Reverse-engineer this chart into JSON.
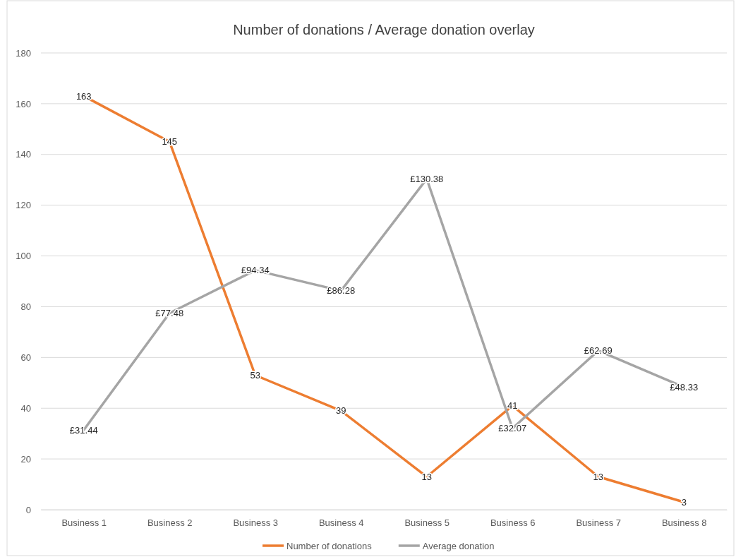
{
  "chart_data": {
    "type": "line",
    "title": "Number of donations / Average donation overlay",
    "categories": [
      "Business 1",
      "Business 2",
      "Business 3",
      "Business 4",
      "Business 5",
      "Business 6",
      "Business 7",
      "Business 8"
    ],
    "series": [
      {
        "name": "Number of donations",
        "color": "#ed7d31",
        "values": [
          163,
          145,
          53,
          39,
          13,
          41,
          13,
          3
        ],
        "value_labels": [
          "163",
          "145",
          "53",
          "39",
          "13",
          "41",
          "13",
          "3"
        ]
      },
      {
        "name": "Average donation",
        "color": "#a5a5a5",
        "values": [
          31.44,
          77.48,
          94.34,
          86.28,
          130.38,
          32.07,
          62.69,
          48.33
        ],
        "value_labels": [
          "£31.44",
          "£77.48",
          "£94.34",
          "£86.28",
          "£130.38",
          "£32.07",
          "£62.69",
          "£48.33"
        ]
      }
    ],
    "ylim": [
      0,
      180
    ],
    "yticks": [
      0,
      20,
      40,
      60,
      80,
      100,
      120,
      140,
      160,
      180
    ],
    "grid": "y",
    "legend": "bottom",
    "marker": "none",
    "line_style": "solid"
  }
}
